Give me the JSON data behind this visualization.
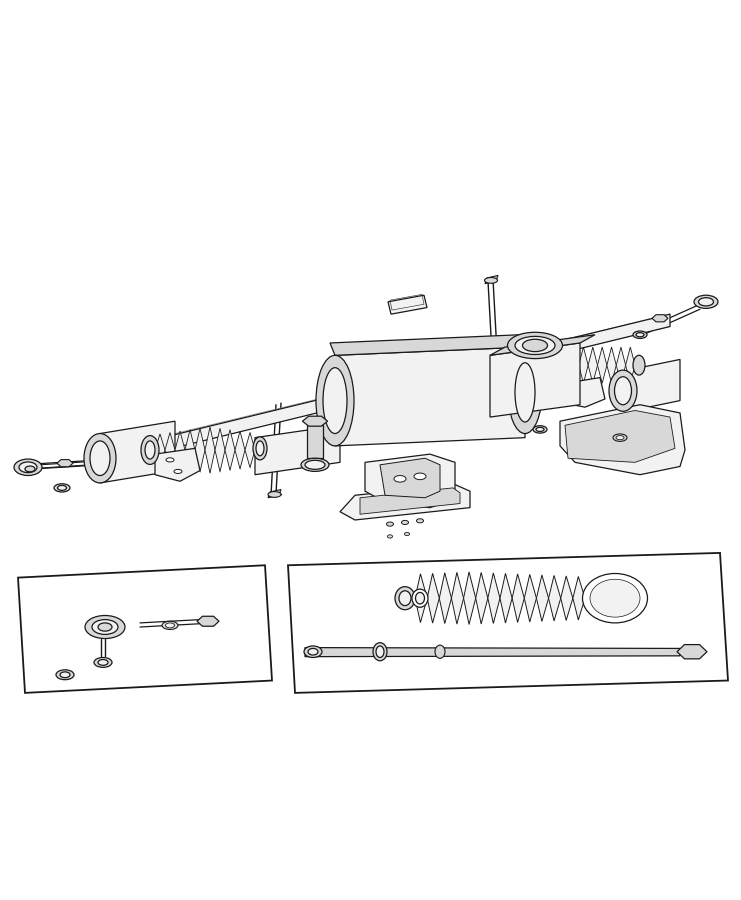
{
  "bg_color": "#ffffff",
  "line_color": "#1a1a1a",
  "fill_white": "#ffffff",
  "fill_light": "#f2f2f2",
  "fill_mid": "#d8d8d8",
  "fill_dark": "#b0b0b0",
  "figsize": [
    7.41,
    9.0
  ],
  "dpi": 100,
  "lw_main": 0.9,
  "lw_thin": 0.5,
  "lw_thick": 1.3
}
